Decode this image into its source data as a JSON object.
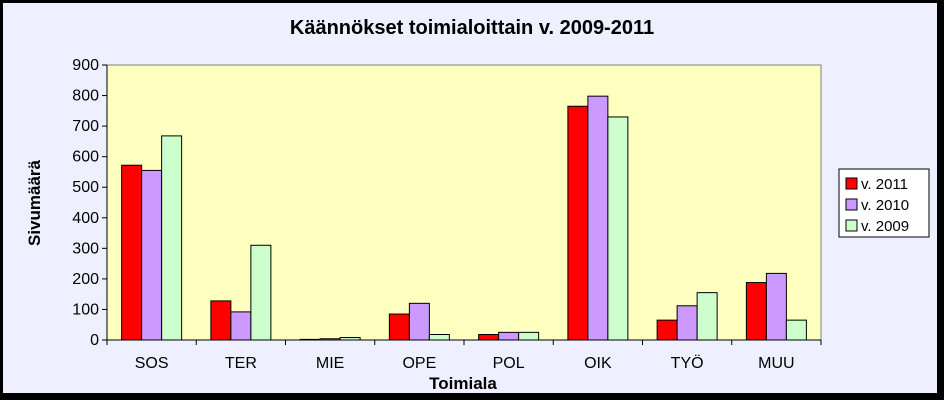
{
  "chart_data": {
    "type": "bar",
    "title": "Käännökset toimialoittain  v. 2009-2011",
    "xlabel": "Toimiala",
    "ylabel": "Sivumäärä",
    "categories": [
      "SOS",
      "TER",
      "MIE",
      "OPE",
      "POL",
      "OIK",
      "TYÖ",
      "MUU"
    ],
    "ylim": [
      0,
      900
    ],
    "yticks": [
      0,
      100,
      200,
      300,
      400,
      500,
      600,
      700,
      800,
      900
    ],
    "series": [
      {
        "name": "v. 2011",
        "color": "#ff0000",
        "values": [
          572,
          128,
          2,
          85,
          18,
          765,
          65,
          188
        ]
      },
      {
        "name": "v. 2010",
        "color": "#cc99ff",
        "values": [
          555,
          92,
          4,
          120,
          25,
          798,
          112,
          218
        ]
      },
      {
        "name": "v. 2009",
        "color": "#ccffcc",
        "values": [
          668,
          310,
          8,
          18,
          25,
          730,
          155,
          65
        ]
      }
    ],
    "plot_background": "#ffffc0",
    "page_background": "#eef0ff",
    "grid": false,
    "legend_position": "right"
  }
}
